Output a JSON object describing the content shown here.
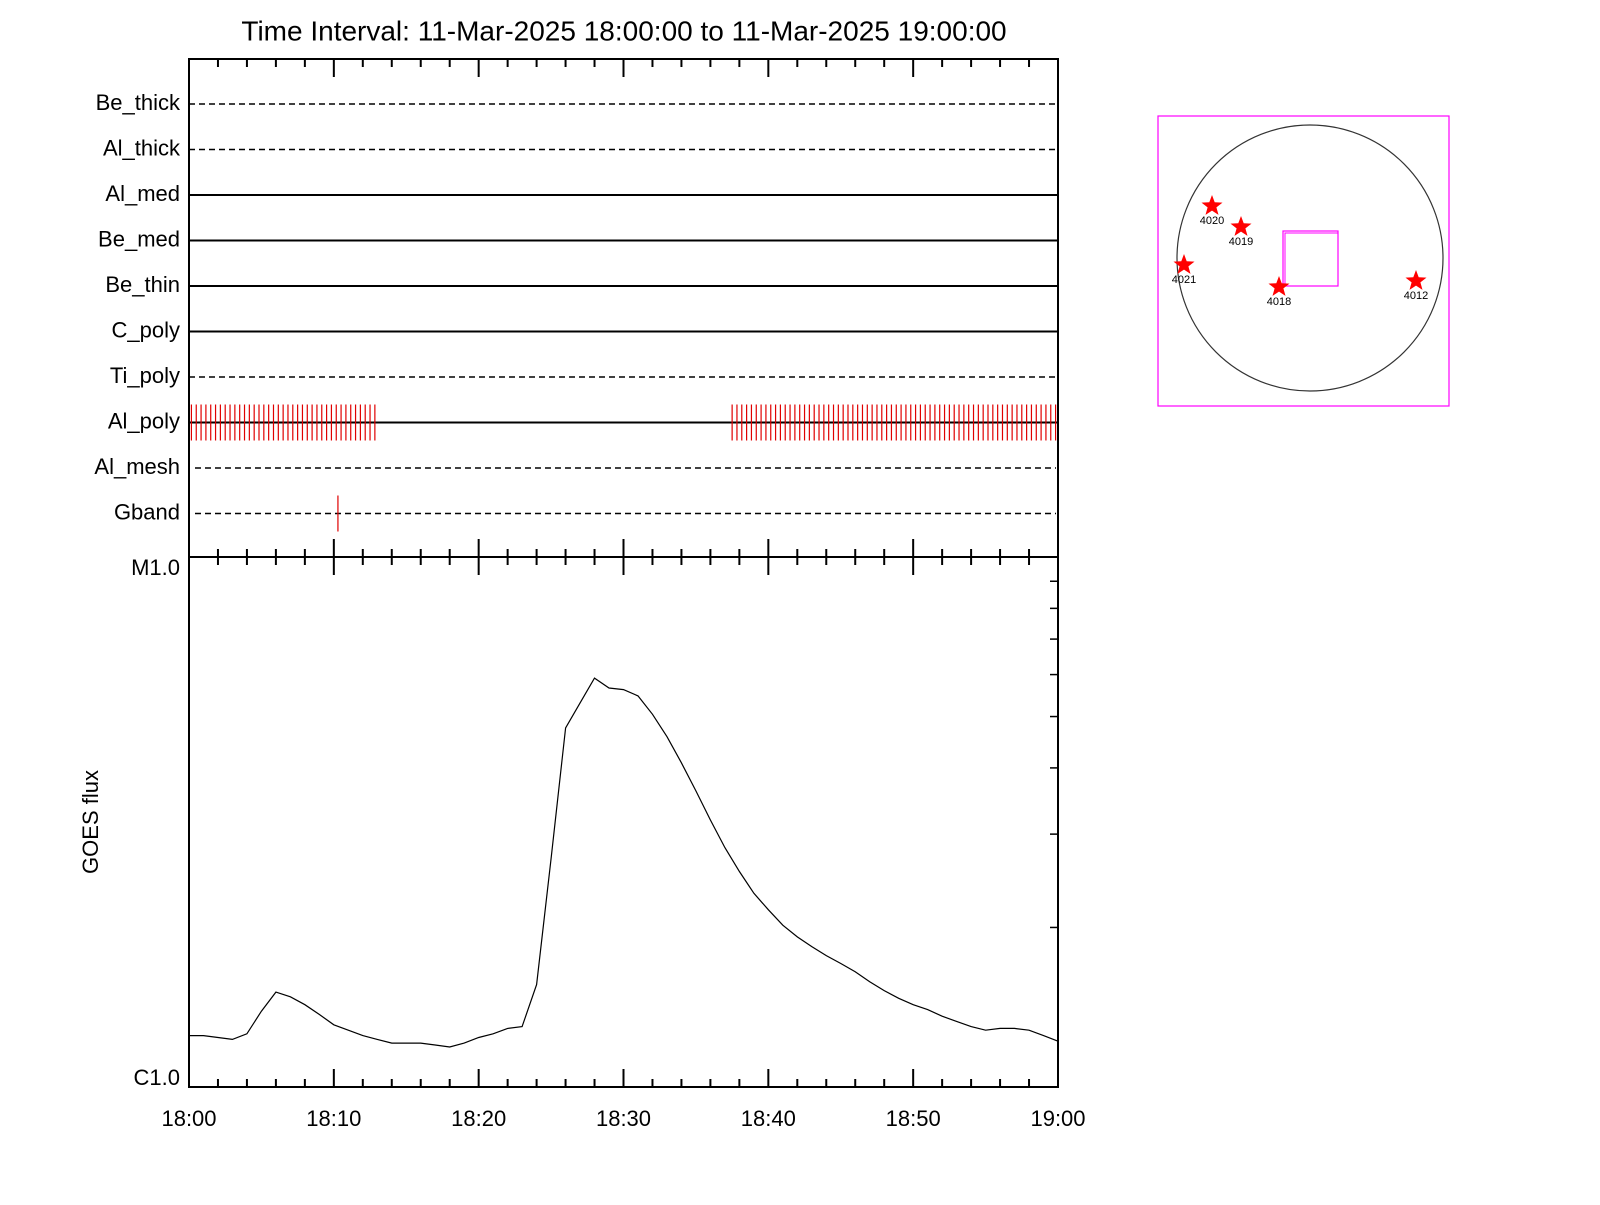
{
  "chart_data": [
    {
      "type": "timeline",
      "title": "Time Interval: 11-Mar-2025 18:00:00 to 11-Mar-2025 19:00:00",
      "categories": [
        "Be_thick",
        "Al_thick",
        "Al_med",
        "Be_med",
        "Be_thin",
        "C_poly",
        "Ti_poly",
        "Al_poly",
        "Al_mesh",
        "Gband"
      ],
      "line_styles": [
        "dashed",
        "dashed",
        "solid",
        "solid",
        "solid",
        "solid",
        "dashed",
        "solid",
        "dashed",
        "dashed"
      ],
      "event_color": "#e00000",
      "events": [
        [],
        [],
        [],
        [],
        [],
        [],
        [],
        [
          "18:00:10",
          "18:00:30",
          "18:00:50",
          "18:01:10",
          "18:01:30",
          "18:01:50",
          "18:02:10",
          "18:02:30",
          "18:02:50",
          "18:03:10",
          "18:03:30",
          "18:03:50",
          "18:04:10",
          "18:04:30",
          "18:04:50",
          "18:05:10",
          "18:05:30",
          "18:05:50",
          "18:06:10",
          "18:06:30",
          "18:06:50",
          "18:07:10",
          "18:07:30",
          "18:07:50",
          "18:08:10",
          "18:08:30",
          "18:08:50",
          "18:09:10",
          "18:09:30",
          "18:09:50",
          "18:10:10",
          "18:10:30",
          "18:10:50",
          "18:11:10",
          "18:11:30",
          "18:11:50",
          "18:12:10",
          "18:12:30",
          "18:12:50",
          "18:37:30",
          "18:37:50",
          "18:38:10",
          "18:38:30",
          "18:38:50",
          "18:39:10",
          "18:39:30",
          "18:39:50",
          "18:40:10",
          "18:40:30",
          "18:40:50",
          "18:41:10",
          "18:41:30",
          "18:41:50",
          "18:42:10",
          "18:42:30",
          "18:42:50",
          "18:43:10",
          "18:43:30",
          "18:43:50",
          "18:44:10",
          "18:44:30",
          "18:44:50",
          "18:45:10",
          "18:45:30",
          "18:45:50",
          "18:46:10",
          "18:46:30",
          "18:46:50",
          "18:47:10",
          "18:47:30",
          "18:47:50",
          "18:48:10",
          "18:48:30",
          "18:48:50",
          "18:49:10",
          "18:49:30",
          "18:49:50",
          "18:50:10",
          "18:50:30",
          "18:50:50",
          "18:51:10",
          "18:51:30",
          "18:51:50",
          "18:52:10",
          "18:52:30",
          "18:52:50",
          "18:53:10",
          "18:53:30",
          "18:53:50",
          "18:54:10",
          "18:54:30",
          "18:54:50",
          "18:55:10",
          "18:55:30",
          "18:55:50",
          "18:56:10",
          "18:56:30",
          "18:56:50",
          "18:57:10",
          "18:57:30",
          "18:57:50",
          "18:58:10",
          "18:58:30",
          "18:58:50",
          "18:59:10",
          "18:59:30",
          "18:59:50"
        ],
        [],
        [
          "18:10:17"
        ]
      ]
    },
    {
      "type": "line",
      "ylabel": "GOES flux",
      "color": "#000000",
      "log_y": true,
      "x": [
        "18:00",
        "18:01",
        "18:02",
        "18:03",
        "18:04",
        "18:05",
        "18:06",
        "18:07",
        "18:08",
        "18:09",
        "18:10",
        "18:11",
        "18:12",
        "18:13",
        "18:14",
        "18:15",
        "18:16",
        "18:17",
        "18:18",
        "18:19",
        "18:20",
        "18:21",
        "18:22",
        "18:23",
        "18:24",
        "18:25",
        "18:26",
        "18:27",
        "18:28",
        "18:29",
        "18:30",
        "18:31",
        "18:32",
        "18:33",
        "18:34",
        "18:35",
        "18:36",
        "18:37",
        "18:38",
        "18:39",
        "18:40",
        "18:41",
        "18:42",
        "18:43",
        "18:44",
        "18:45",
        "18:46",
        "18:47",
        "18:48",
        "18:49",
        "18:50",
        "18:51",
        "18:52",
        "18:53",
        "18:54",
        "18:55",
        "18:56",
        "18:57",
        "18:58",
        "18:59",
        "19:00"
      ],
      "values": [
        1.25e-06,
        1.25e-06,
        1.24e-06,
        1.23e-06,
        1.26e-06,
        1.39e-06,
        1.51e-06,
        1.48e-06,
        1.43e-06,
        1.37e-06,
        1.31e-06,
        1.28e-06,
        1.25e-06,
        1.23e-06,
        1.21e-06,
        1.21e-06,
        1.21e-06,
        1.2e-06,
        1.19e-06,
        1.21e-06,
        1.24e-06,
        1.26e-06,
        1.29e-06,
        1.3e-06,
        1.56e-06,
        2.7e-06,
        4.76e-06,
        5.3e-06,
        5.91e-06,
        5.66e-06,
        5.62e-06,
        5.47e-06,
        5.05e-06,
        4.58e-06,
        4.09e-06,
        3.62e-06,
        3.19e-06,
        2.83e-06,
        2.55e-06,
        2.32e-06,
        2.16e-06,
        2.02e-06,
        1.92e-06,
        1.84e-06,
        1.77e-06,
        1.71e-06,
        1.65e-06,
        1.58e-06,
        1.52e-06,
        1.47e-06,
        1.43e-06,
        1.4e-06,
        1.36e-06,
        1.33e-06,
        1.3e-06,
        1.28e-06,
        1.29e-06,
        1.29e-06,
        1.28e-06,
        1.25e-06,
        1.22e-06
      ],
      "xlim": [
        "18:00",
        "19:00"
      ],
      "xticks": [
        "18:00",
        "18:10",
        "18:20",
        "18:30",
        "18:40",
        "18:50",
        "19:00"
      ],
      "minor_xticks": [
        "18:02",
        "18:04",
        "18:06",
        "18:08",
        "18:12",
        "18:14",
        "18:16",
        "18:18",
        "18:22",
        "18:24",
        "18:26",
        "18:28",
        "18:32",
        "18:34",
        "18:36",
        "18:38",
        "18:42",
        "18:44",
        "18:46",
        "18:48",
        "18:52",
        "18:54",
        "18:56",
        "18:58"
      ],
      "ylim": [
        1e-06,
        1e-05
      ],
      "yticks": [
        {
          "value": 1e-06,
          "label": "C1.0"
        },
        {
          "value": 1e-05,
          "label": "M1.0"
        }
      ],
      "minor_yticks": [
        2e-06,
        3e-06,
        4e-06,
        5e-06,
        6e-06,
        7e-06,
        8e-06,
        9e-06
      ]
    }
  ],
  "sun_map": {
    "frame_color": "#ff00ff",
    "marker_color": "#ff0000",
    "regions": [
      {
        "label": "4020"
      },
      {
        "label": "4019"
      },
      {
        "label": "4021"
      },
      {
        "label": "4018"
      },
      {
        "label": "4012"
      }
    ]
  }
}
